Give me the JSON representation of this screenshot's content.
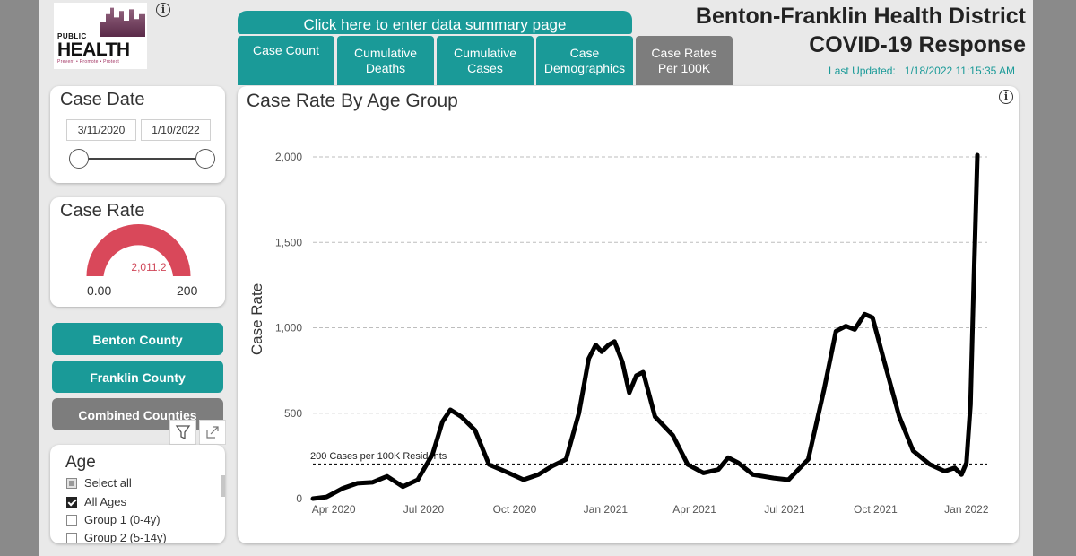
{
  "header": {
    "title_line1": "Benton-Franklin Health District",
    "title_line2": "COVID-19 Response",
    "last_updated_label": "Last Updated:",
    "last_updated_value": "1/18/2022 11:15:35 AM",
    "summary_button": "Click here to enter data summary page"
  },
  "logo": {
    "public": "PUBLIC",
    "health": "HEALTH",
    "tagline": "Prevent • Promote • Protect"
  },
  "tabs": [
    {
      "line1": "Case Count",
      "line2": ""
    },
    {
      "line1": "Cumulative",
      "line2": "Deaths"
    },
    {
      "line1": "Cumulative",
      "line2": "Cases"
    },
    {
      "line1": "Case",
      "line2": "Demographics"
    },
    {
      "line1": "Case Rates",
      "line2": "Per 100K",
      "active": true
    }
  ],
  "case_date": {
    "title": "Case Date",
    "start": "3/11/2020",
    "end": "1/10/2022"
  },
  "case_rate": {
    "title": "Case Rate",
    "value": "2,011.2",
    "min": "0.00",
    "max": "200",
    "value_fraction": 1.0
  },
  "counties": [
    "Benton County",
    "Franklin County",
    "Combined Counties"
  ],
  "selected_county": "Combined Counties",
  "age": {
    "title": "Age",
    "items": [
      {
        "label": "Select all",
        "state": "partial"
      },
      {
        "label": "All Ages",
        "state": "checked"
      },
      {
        "label": "Group 1 (0-4y)",
        "state": "unchecked"
      },
      {
        "label": "Group 2 (5-14y)",
        "state": "unchecked"
      }
    ]
  },
  "colors": {
    "teal": "#1a9a98",
    "gray_tab": "#7d7d7d",
    "gauge_red": "#d9485a"
  },
  "chart_data": {
    "type": "line",
    "title": "Case Rate By Age Group",
    "ylabel": "Case Rate",
    "xlabel": "",
    "ylim": [
      0,
      2100
    ],
    "xlim": [
      "2020-03-11",
      "2022-01-22"
    ],
    "yticks": [
      0,
      500,
      1000,
      1500,
      2000
    ],
    "ytick_labels": [
      "0",
      "500",
      "1,000",
      "1,500",
      "2,000"
    ],
    "xticks": [
      "2020-04-01",
      "2020-07-01",
      "2020-10-01",
      "2021-01-01",
      "2021-04-01",
      "2021-07-01",
      "2021-10-01",
      "2022-01-01"
    ],
    "xtick_labels": [
      "Apr 2020",
      "Jul 2020",
      "Oct 2020",
      "Jan 2021",
      "Apr 2021",
      "Jul 2021",
      "Oct 2021",
      "Jan 2022"
    ],
    "grid": true,
    "reference_line": {
      "value": 200,
      "label": "200 Cases per 100K Residents"
    },
    "series": [
      {
        "values": [
          [
            "2020-03-11",
            0
          ],
          [
            "2020-03-25",
            10
          ],
          [
            "2020-04-10",
            60
          ],
          [
            "2020-04-25",
            90
          ],
          [
            "2020-05-10",
            95
          ],
          [
            "2020-05-25",
            130
          ],
          [
            "2020-06-10",
            70
          ],
          [
            "2020-06-25",
            110
          ],
          [
            "2020-07-10",
            260
          ],
          [
            "2020-07-20",
            450
          ],
          [
            "2020-07-28",
            520
          ],
          [
            "2020-08-08",
            480
          ],
          [
            "2020-08-22",
            400
          ],
          [
            "2020-09-05",
            200
          ],
          [
            "2020-09-25",
            150
          ],
          [
            "2020-10-10",
            110
          ],
          [
            "2020-10-25",
            140
          ],
          [
            "2020-11-08",
            190
          ],
          [
            "2020-11-22",
            230
          ],
          [
            "2020-12-05",
            500
          ],
          [
            "2020-12-15",
            820
          ],
          [
            "2020-12-22",
            900
          ],
          [
            "2020-12-28",
            860
          ],
          [
            "2021-01-04",
            900
          ],
          [
            "2021-01-10",
            920
          ],
          [
            "2021-01-18",
            800
          ],
          [
            "2021-01-25",
            620
          ],
          [
            "2021-02-01",
            720
          ],
          [
            "2021-02-08",
            740
          ],
          [
            "2021-02-20",
            480
          ],
          [
            "2021-03-10",
            370
          ],
          [
            "2021-03-25",
            200
          ],
          [
            "2021-04-10",
            150
          ],
          [
            "2021-04-25",
            170
          ],
          [
            "2021-05-05",
            240
          ],
          [
            "2021-05-15",
            210
          ],
          [
            "2021-05-30",
            140
          ],
          [
            "2021-06-20",
            120
          ],
          [
            "2021-07-05",
            110
          ],
          [
            "2021-07-25",
            230
          ],
          [
            "2021-08-10",
            640
          ],
          [
            "2021-08-22",
            980
          ],
          [
            "2021-09-01",
            1010
          ],
          [
            "2021-09-10",
            990
          ],
          [
            "2021-09-20",
            1080
          ],
          [
            "2021-09-28",
            1060
          ],
          [
            "2021-10-10",
            800
          ],
          [
            "2021-10-25",
            480
          ],
          [
            "2021-11-08",
            280
          ],
          [
            "2021-11-25",
            200
          ],
          [
            "2021-12-10",
            160
          ],
          [
            "2021-12-20",
            180
          ],
          [
            "2021-12-27",
            140
          ],
          [
            "2022-01-01",
            210
          ],
          [
            "2022-01-05",
            550
          ],
          [
            "2022-01-08",
            1200
          ],
          [
            "2022-01-12",
            2011
          ]
        ]
      }
    ]
  }
}
